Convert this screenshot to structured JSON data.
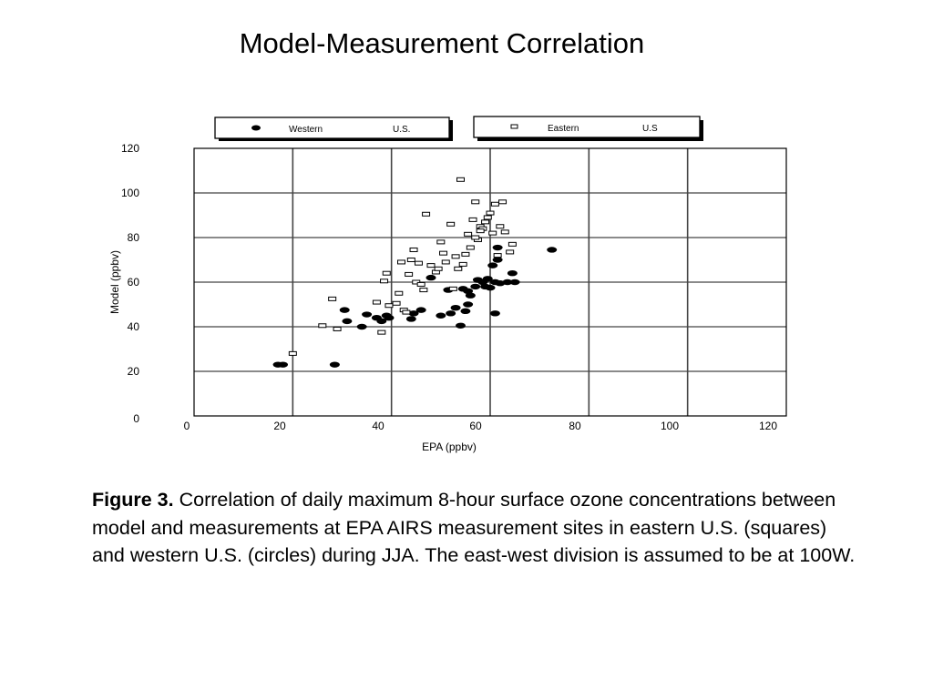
{
  "slide": {
    "title": "Model-Measurement Correlation"
  },
  "caption": {
    "label": "Figure 3.",
    "text": " Correlation of daily maximum 8-hour surface ozone concentrations between model and measurements at EPA AIRS measurement sites in eastern U.S. (squares) and western U.S. (circles) during JJA. The east-west division is assumed to be at 100W."
  },
  "chart_data": {
    "type": "scatter",
    "title": "",
    "xlabel": "EPA (ppbv)",
    "ylabel": "Model (ppbv)",
    "xlim": [
      0,
      120
    ],
    "ylim": [
      0,
      120
    ],
    "xticks": [
      0,
      20,
      40,
      60,
      80,
      100,
      120
    ],
    "yticks": [
      0,
      20,
      40,
      60,
      80,
      100,
      120
    ],
    "grid": true,
    "legend_position": "top",
    "series": [
      {
        "name": "Western U.S.",
        "legend_text_left": "Western",
        "legend_text_right": "U.S.",
        "marker": "filled-circle",
        "color": "#000000",
        "points": [
          [
            17,
            23
          ],
          [
            18,
            23
          ],
          [
            28.5,
            23
          ],
          [
            30.5,
            47.5
          ],
          [
            31,
            42.5
          ],
          [
            34,
            40
          ],
          [
            35,
            45.5
          ],
          [
            37,
            44
          ],
          [
            38,
            42.5
          ],
          [
            39,
            45
          ],
          [
            39.5,
            44
          ],
          [
            44,
            43.5
          ],
          [
            44.5,
            46
          ],
          [
            46,
            47.5
          ],
          [
            48,
            62
          ],
          [
            50,
            45
          ],
          [
            51.5,
            56.5
          ],
          [
            52,
            46
          ],
          [
            53,
            48.5
          ],
          [
            54,
            40.5
          ],
          [
            54.5,
            57
          ],
          [
            55,
            47
          ],
          [
            55.5,
            50
          ],
          [
            55.5,
            56
          ],
          [
            56,
            54
          ],
          [
            57,
            58
          ],
          [
            57.5,
            61
          ],
          [
            58.5,
            60
          ],
          [
            59,
            58
          ],
          [
            59.5,
            61.5
          ],
          [
            60,
            57.5
          ],
          [
            60.5,
            67.5
          ],
          [
            61,
            60
          ],
          [
            61,
            46
          ],
          [
            61.5,
            70
          ],
          [
            61.5,
            75.5
          ],
          [
            62,
            59.5
          ],
          [
            63.5,
            60
          ],
          [
            64.5,
            64
          ],
          [
            65,
            60
          ],
          [
            72.5,
            74.5
          ]
        ]
      },
      {
        "name": "Eastern U.S",
        "legend_text_left": "Eastern",
        "legend_text_right": "U.S",
        "marker": "open-square",
        "color": "#000000",
        "points": [
          [
            20,
            28
          ],
          [
            26,
            40.5
          ],
          [
            28,
            52.5
          ],
          [
            29,
            39
          ],
          [
            37,
            51
          ],
          [
            38,
            37.5
          ],
          [
            38.5,
            60.5
          ],
          [
            39,
            64
          ],
          [
            39.5,
            49.5
          ],
          [
            41,
            50.5
          ],
          [
            41.5,
            55
          ],
          [
            42,
            69
          ],
          [
            42.5,
            47.5
          ],
          [
            43,
            46.5
          ],
          [
            43.5,
            63.5
          ],
          [
            44,
            70
          ],
          [
            44.5,
            74.5
          ],
          [
            45,
            60
          ],
          [
            45.5,
            68.5
          ],
          [
            46,
            59
          ],
          [
            46.5,
            56.5
          ],
          [
            47,
            90.5
          ],
          [
            48,
            67.5
          ],
          [
            49,
            64.5
          ],
          [
            49.5,
            66
          ],
          [
            50,
            78
          ],
          [
            50.5,
            73
          ],
          [
            51,
            69
          ],
          [
            52,
            86
          ],
          [
            52.5,
            57
          ],
          [
            53,
            71.5
          ],
          [
            53.5,
            66
          ],
          [
            54,
            106
          ],
          [
            54.5,
            68
          ],
          [
            55,
            72.5
          ],
          [
            55.5,
            81.5
          ],
          [
            56,
            75.5
          ],
          [
            56.5,
            88
          ],
          [
            57,
            96
          ],
          [
            57.5,
            79
          ],
          [
            58,
            85
          ],
          [
            58.5,
            84
          ],
          [
            59,
            87
          ],
          [
            59.5,
            89
          ],
          [
            60,
            91
          ],
          [
            60.5,
            82
          ],
          [
            61,
            95
          ],
          [
            61.5,
            72
          ],
          [
            62,
            85
          ],
          [
            62.5,
            96
          ],
          [
            63,
            82.5
          ],
          [
            64,
            73.5
          ],
          [
            64.5,
            77
          ],
          [
            58,
            83
          ],
          [
            57,
            80
          ]
        ]
      }
    ]
  }
}
